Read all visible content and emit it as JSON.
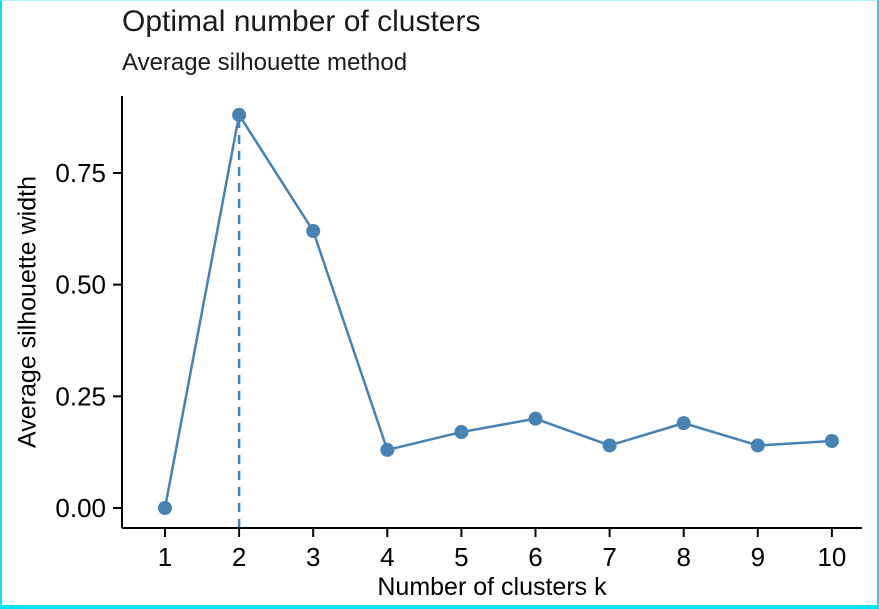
{
  "page": {
    "border_color": "#00e5f0",
    "background_color": "#ffffff"
  },
  "chart_data": {
    "type": "line",
    "title": "Optimal number of clusters",
    "subtitle": "Average silhouette method",
    "xlabel": "Number of clusters k",
    "ylabel": "Average silhouette width",
    "x": [
      1,
      2,
      3,
      4,
      5,
      6,
      7,
      8,
      9,
      10
    ],
    "values": [
      0.0,
      0.88,
      0.62,
      0.13,
      0.17,
      0.2,
      0.14,
      0.19,
      0.14,
      0.15
    ],
    "yticks": [
      0,
      0.25,
      0.5,
      0.75
    ],
    "ytick_labels": [
      "0.00",
      "0.25",
      "0.50",
      "0.75"
    ],
    "xtick_labels": [
      "1",
      "2",
      "3",
      "4",
      "5",
      "6",
      "7",
      "8",
      "9",
      "10"
    ],
    "ylim": [
      0,
      0.93
    ],
    "optimal_k": 2,
    "vline_x": 2,
    "vline_style": "dashed",
    "line_color": "#4682B4",
    "point_color": "#4682B4",
    "axis_color": "#000000",
    "grid": false,
    "legend": "none"
  }
}
